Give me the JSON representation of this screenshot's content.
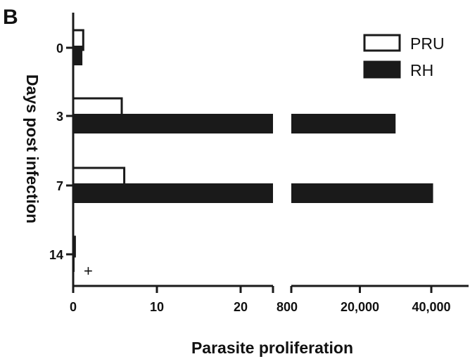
{
  "panel_label": "B",
  "chart_data": {
    "type": "bar",
    "orientation": "horizontal",
    "xlabel": "Parasite proliferation",
    "ylabel": "Days post infection",
    "categories": [
      "0",
      "3",
      "7",
      "14"
    ],
    "series": [
      {
        "name": "PRU",
        "fill": "hollow",
        "values": [
          1.2,
          5.8,
          6.1,
          0.2
        ]
      },
      {
        "name": "RH",
        "fill": "solid",
        "values": [
          1.1,
          30000,
          40500,
          0.1
        ]
      }
    ],
    "x_axis_segments": [
      {
        "range": [
          0,
          25
        ],
        "ticks": [
          0,
          10,
          20
        ],
        "tick_labels": [
          "0",
          "10",
          "20"
        ]
      },
      {
        "range": [
          0,
          40500
        ],
        "ticks": [
          800,
          20000,
          40000
        ],
        "tick_labels": [
          "800",
          "20,000",
          "40,000"
        ]
      }
    ],
    "axis_break": true,
    "annotations": [
      {
        "text": "+",
        "category": "14",
        "series": "RH"
      }
    ],
    "legend": {
      "position": "top-right"
    },
    "colors": {
      "bar": "#1a1a1a",
      "background": "#ffffff"
    }
  }
}
